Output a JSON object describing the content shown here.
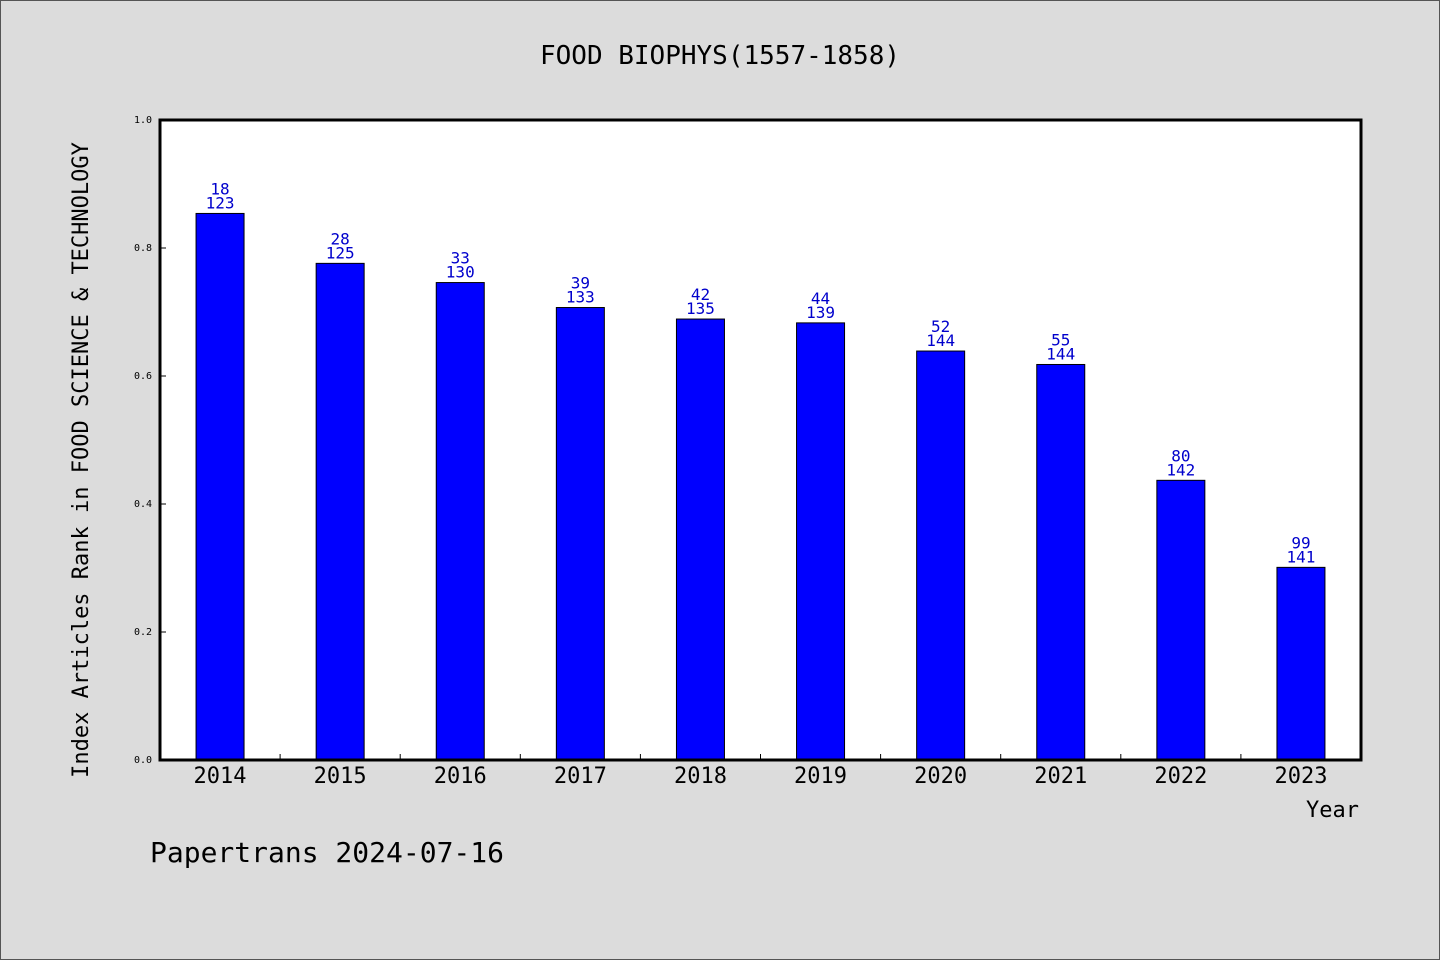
{
  "chart_data": {
    "type": "bar",
    "title": "FOOD BIOPHYS(1557-1858)",
    "xlabel": "Year",
    "ylabel": "Index Articles Rank in FOOD SCIENCE & TECHNOLOGY",
    "ylim": [
      0,
      1.0
    ],
    "yticks": [
      "0.0",
      "0.2",
      "0.4",
      "0.6",
      "0.8",
      "1.0"
    ],
    "categories": [
      "2014",
      "2015",
      "2016",
      "2017",
      "2018",
      "2019",
      "2020",
      "2021",
      "2022",
      "2023"
    ],
    "values": [
      0.854,
      0.776,
      0.746,
      0.707,
      0.689,
      0.683,
      0.639,
      0.618,
      0.437,
      0.301
    ],
    "labels_top": [
      "18",
      "28",
      "33",
      "39",
      "42",
      "44",
      "52",
      "55",
      "80",
      "99"
    ],
    "labels_bottom": [
      "123",
      "125",
      "130",
      "133",
      "135",
      "139",
      "144",
      "144",
      "142",
      "141"
    ],
    "bar_color": "#0000ff",
    "label_color": "#0000cc",
    "grid": false
  },
  "footer": "Papertrans 2024-07-16"
}
